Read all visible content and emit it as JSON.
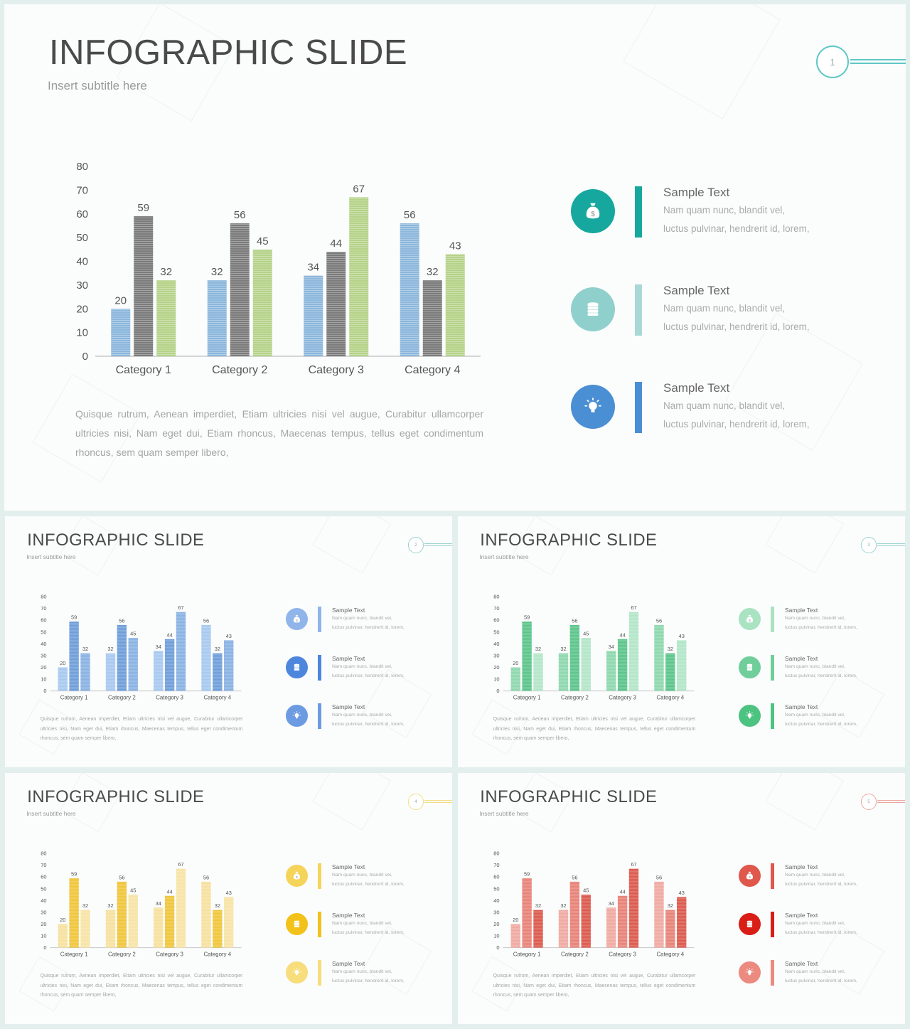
{
  "chart_data": [
    {
      "type": "bar",
      "categories": [
        "Category 1",
        "Category 2",
        "Category 3",
        "Category 4"
      ],
      "series": [
        {
          "values": [
            20,
            32,
            34,
            56
          ]
        },
        {
          "values": [
            59,
            56,
            44,
            32
          ]
        },
        {
          "values": [
            32,
            45,
            67,
            43
          ]
        }
      ],
      "ylim": [
        0,
        80
      ],
      "yticks": [
        0,
        10,
        20,
        30,
        40,
        50,
        60,
        70,
        80
      ],
      "grid": false,
      "xlabel": "",
      "ylabel": "",
      "title": ""
    },
    {
      "type": "bar",
      "categories": [
        "Category 1",
        "Category 2",
        "Category 3",
        "Category 4"
      ],
      "series": [
        {
          "values": [
            20,
            32,
            34,
            56
          ]
        },
        {
          "values": [
            59,
            56,
            44,
            32
          ]
        },
        {
          "values": [
            32,
            45,
            67,
            43
          ]
        }
      ],
      "ylim": [
        0,
        80
      ],
      "yticks": [
        0,
        10,
        20,
        30,
        40,
        50,
        60,
        70,
        80
      ],
      "grid": false,
      "xlabel": "",
      "ylabel": "",
      "title": ""
    },
    {
      "type": "bar",
      "categories": [
        "Category 1",
        "Category 2",
        "Category 3",
        "Category 4"
      ],
      "series": [
        {
          "values": [
            20,
            32,
            34,
            56
          ]
        },
        {
          "values": [
            59,
            56,
            44,
            32
          ]
        },
        {
          "values": [
            32,
            45,
            67,
            43
          ]
        }
      ],
      "ylim": [
        0,
        80
      ],
      "yticks": [
        0,
        10,
        20,
        30,
        40,
        50,
        60,
        70,
        80
      ],
      "grid": false,
      "xlabel": "",
      "ylabel": "",
      "title": ""
    },
    {
      "type": "bar",
      "categories": [
        "Category 1",
        "Category 2",
        "Category 3",
        "Category 4"
      ],
      "series": [
        {
          "values": [
            20,
            32,
            34,
            56
          ]
        },
        {
          "values": [
            59,
            56,
            44,
            32
          ]
        },
        {
          "values": [
            32,
            45,
            67,
            43
          ]
        }
      ],
      "ylim": [
        0,
        80
      ],
      "yticks": [
        0,
        10,
        20,
        30,
        40,
        50,
        60,
        70,
        80
      ],
      "grid": false,
      "xlabel": "",
      "ylabel": "",
      "title": ""
    },
    {
      "type": "bar",
      "categories": [
        "Category 1",
        "Category 2",
        "Category 3",
        "Category 4"
      ],
      "series": [
        {
          "values": [
            20,
            32,
            34,
            56
          ]
        },
        {
          "values": [
            59,
            56,
            44,
            32
          ]
        },
        {
          "values": [
            32,
            45,
            67,
            43
          ]
        }
      ],
      "ylim": [
        0,
        80
      ],
      "yticks": [
        0,
        10,
        20,
        30,
        40,
        50,
        60,
        70,
        80
      ],
      "grid": false,
      "xlabel": "",
      "ylabel": "",
      "title": ""
    }
  ],
  "slides": [
    {
      "number": "1",
      "title": "INFOGRAPHIC SLIDE",
      "subtitle": "Insert  subtitle  here",
      "body": "Quisque  rutrum,  Aenean  imperdiet,  Etiam  ultricies  nisi  vel  augue,  Curabitur  ullamcorper ultricies  nisi,  Nam  eget  dui,  Etiam  rhoncus,  Maecenas  tempus,  tellus  eget  condimentum  rhoncus,  sem  quam  semper  libero,",
      "series_colors": [
        "#8cb7dc",
        "#7b7b7b",
        "#b5d389"
      ],
      "accent": "#5ec8c6",
      "items": [
        {
          "icon": "money-bag-icon",
          "title": "Sample  Text",
          "line1": "Nam  quam  nunc,  blandit  vel,",
          "line2": "luctus  pulvinar,  hendrerit  id,  lorem,",
          "icon_color": "#16a89e",
          "bar_color": "#16a89e"
        },
        {
          "icon": "coin-stack-icon",
          "title": "Sample  Text",
          "line1": "Nam  quam  nunc,  blandit  vel,",
          "line2": "luctus  pulvinar,  hendrerit  id,  lorem,",
          "icon_color": "#8fd0cd",
          "bar_color": "#a9d8d6"
        },
        {
          "icon": "lightbulb-icon",
          "title": "Sample  Text",
          "line1": "Nam  quam  nunc,  blandit  vel,",
          "line2": "luctus  pulvinar,  hendrerit  id,  lorem,",
          "icon_color": "#4a8fd3",
          "bar_color": "#4a8fd3"
        }
      ]
    },
    {
      "number": "2",
      "title": "INFOGRAPHIC SLIDE",
      "subtitle": "Insert  subtitle  here",
      "body": "Quisque  rutrum,  Aenean  imperdiet,  Etiam  ultricies  nisi  vel  augue,  Curabitur  ullamcorper ultricies  nisi,  Nam  eget  dui,  Etiam  rhoncus,  Maecenas  tempus,  tellus  eget  condimentum  rhoncus,  sem  quam  semper  libero,",
      "series_colors": [
        "#a8c9ef",
        "#6f9ed9",
        "#8ab2e3"
      ],
      "accent": "#9bd3d0",
      "items": [
        {
          "icon": "money-bag-icon",
          "title": "Sample  Text",
          "line1": "Nam  quam  nunc,  blandit  vel,",
          "line2": "luctus  pulvinar,  hendrerit  id,  lorem,",
          "icon_color": "#8fb5ea",
          "bar_color": "#8fb5ea"
        },
        {
          "icon": "coin-stack-icon",
          "title": "Sample  Text",
          "line1": "Nam  quam  nunc,  blandit  vel,",
          "line2": "luctus  pulvinar,  hendrerit  id,  lorem,",
          "icon_color": "#4d86dd",
          "bar_color": "#4d86dd"
        },
        {
          "icon": "lightbulb-icon",
          "title": "Sample  Text",
          "line1": "Nam  quam  nunc,  blandit  vel,",
          "line2": "luctus  pulvinar,  hendrerit  id,  lorem,",
          "icon_color": "#6d9be2",
          "bar_color": "#6d9be2"
        }
      ]
    },
    {
      "number": "3",
      "title": "INFOGRAPHIC SLIDE",
      "subtitle": "Insert  subtitle  here",
      "body": "Quisque  rutrum,  Aenean  imperdiet,  Etiam  ultricies  nisi  vel  augue,  Curabitur  ullamcorper ultricies  nisi,  Nam  eget  dui,  Etiam  rhoncus,  Maecenas  tempus,  tellus  eget  condimentum  rhoncus,  sem  quam  semper  libero,",
      "series_colors": [
        "#8ed8ae",
        "#5cc58b",
        "#b3e6c8"
      ],
      "accent": "#9bd3d0",
      "items": [
        {
          "icon": "money-bag-icon",
          "title": "Sample  Text",
          "line1": "Nam  quam  nunc,  blandit  vel,",
          "line2": "luctus  pulvinar,  hendrerit  id,  lorem,",
          "icon_color": "#a9e3c2",
          "bar_color": "#a9e3c2"
        },
        {
          "icon": "coin-stack-icon",
          "title": "Sample  Text",
          "line1": "Nam  quam  nunc,  blandit  vel,",
          "line2": "luctus  pulvinar,  hendrerit  id,  lorem,",
          "icon_color": "#6fce99",
          "bar_color": "#6fce99"
        },
        {
          "icon": "lightbulb-icon",
          "title": "Sample  Text",
          "line1": "Nam  quam  nunc,  blandit  vel,",
          "line2": "luctus  pulvinar,  hendrerit  id,  lorem,",
          "icon_color": "#4cc381",
          "bar_color": "#4cc381"
        }
      ]
    },
    {
      "number": "4",
      "title": "INFOGRAPHIC SLIDE",
      "subtitle": "Insert  subtitle  here",
      "body": "Quisque  rutrum,  Aenean  imperdiet,  Etiam  ultricies  nisi  vel  augue,  Curabitur  ullamcorper ultricies  nisi,  Nam  eget  dui,  Etiam  rhoncus,  Maecenas  tempus,  tellus  eget  condimentum  rhoncus,  sem  quam  semper  libero,",
      "series_colors": [
        "#f6e1a0",
        "#f0c63c",
        "#f7e4a6"
      ],
      "accent": "#f3de86",
      "items": [
        {
          "icon": "money-bag-icon",
          "title": "Sample  Text",
          "line1": "Nam  quam  nunc,  blandit  vel,",
          "line2": "luctus  pulvinar,  hendrerit  id,  lorem,",
          "icon_color": "#f5d45a",
          "bar_color": "#f5d45a"
        },
        {
          "icon": "coin-stack-icon",
          "title": "Sample  Text",
          "line1": "Nam  quam  nunc,  blandit  vel,",
          "line2": "luctus  pulvinar,  hendrerit  id,  lorem,",
          "icon_color": "#f2c21b",
          "bar_color": "#f2c21b"
        },
        {
          "icon": "lightbulb-icon",
          "title": "Sample  Text",
          "line1": "Nam  quam  nunc,  blandit  vel,",
          "line2": "luctus  pulvinar,  hendrerit  id,  lorem,",
          "icon_color": "#f8dd7c",
          "bar_color": "#f8dd7c"
        }
      ]
    },
    {
      "number": "5",
      "title": "INFOGRAPHIC SLIDE",
      "subtitle": "Insert  subtitle  here",
      "body": "Quisque  rutrum,  Aenean  imperdiet,  Etiam  ultricies  nisi  vel  augue,  Curabitur  ullamcorper ultricies  nisi,  Nam  eget  dui,  Etiam  rhoncus,  Maecenas  tempus,  tellus  eget  condimentum  rhoncus,  sem  quam  semper  libero,",
      "series_colors": [
        "#efaaa2",
        "#e88378",
        "#dc5a4e"
      ],
      "accent": "#eba8a0",
      "items": [
        {
          "icon": "money-bag-icon",
          "title": "Sample  Text",
          "line1": "Nam  quam  nunc,  blandit  vel,",
          "line2": "luctus  pulvinar,  hendrerit  id,  lorem,",
          "icon_color": "#e0574b",
          "bar_color": "#e0574b"
        },
        {
          "icon": "coin-stack-icon",
          "title": "Sample  Text",
          "line1": "Nam  quam  nunc,  blandit  vel,",
          "line2": "luctus  pulvinar,  hendrerit  id,  lorem,",
          "icon_color": "#d81e16",
          "bar_color": "#d81e16"
        },
        {
          "icon": "lightbulb-icon",
          "title": "Sample  Text",
          "line1": "Nam  quam  nunc,  blandit  vel,",
          "line2": "luctus  pulvinar,  hendrerit  id,  lorem,",
          "icon_color": "#ec8a80",
          "bar_color": "#ec8a80"
        }
      ]
    }
  ]
}
